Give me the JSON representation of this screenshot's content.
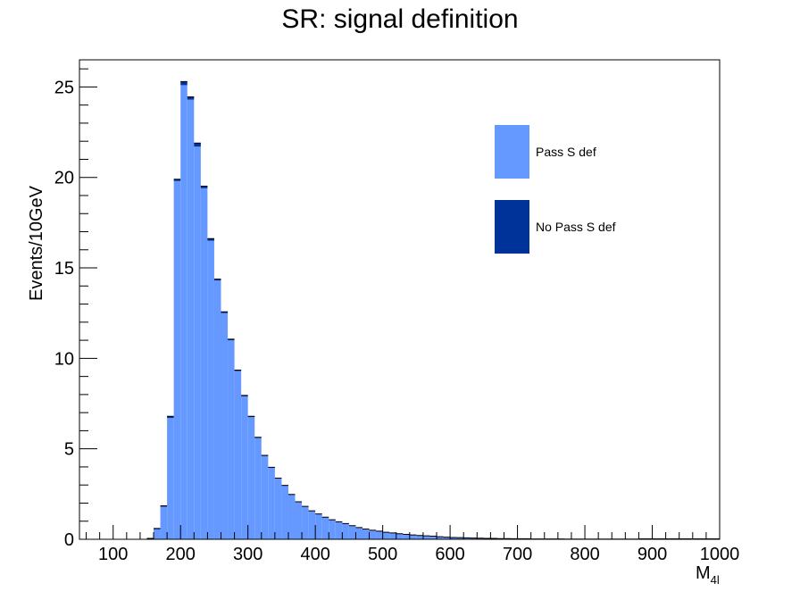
{
  "chart_data": {
    "type": "bar",
    "style": "stacked-histogram",
    "title": "SR: signal definition",
    "ylabel": "Events/10GeV",
    "xlabel_main": "M",
    "xlabel_sub": "4l",
    "xlim": [
      50,
      1000
    ],
    "ylim": [
      0,
      26.5
    ],
    "bin_width": 10,
    "x_ticks": [
      100,
      200,
      300,
      400,
      500,
      600,
      700,
      800,
      900,
      1000
    ],
    "y_ticks": [
      0,
      5,
      10,
      15,
      20,
      25
    ],
    "bin_edges_low": [
      150,
      160,
      170,
      180,
      190,
      200,
      210,
      220,
      230,
      240,
      250,
      260,
      270,
      280,
      290,
      300,
      310,
      320,
      330,
      340,
      350,
      360,
      370,
      380,
      390,
      400,
      410,
      420,
      430,
      440,
      450,
      460,
      470,
      480,
      490,
      500,
      510,
      520,
      530,
      540,
      550,
      560,
      570,
      580,
      590,
      600,
      610,
      620,
      630,
      640,
      650,
      660,
      670,
      680,
      690,
      700,
      710,
      720,
      730,
      740,
      750,
      760,
      770,
      780,
      790,
      800,
      810,
      820,
      830,
      840,
      850,
      860,
      870,
      880,
      890,
      900,
      910,
      920,
      930,
      940,
      950,
      960,
      970,
      980,
      990
    ],
    "series": [
      {
        "name": "Pass S def",
        "color": "#6699ff",
        "values": [
          0.05,
          0.55,
          1.8,
          6.7,
          19.8,
          25.1,
          24.3,
          21.7,
          19.4,
          16.5,
          14.3,
          12.5,
          11.0,
          9.3,
          7.9,
          6.75,
          5.6,
          4.6,
          3.95,
          3.35,
          2.95,
          2.45,
          2.05,
          1.8,
          1.55,
          1.38,
          1.2,
          1.06,
          0.95,
          0.86,
          0.74,
          0.64,
          0.56,
          0.49,
          0.44,
          0.38,
          0.34,
          0.3,
          0.26,
          0.23,
          0.2,
          0.18,
          0.16,
          0.14,
          0.12,
          0.1,
          0.09,
          0.08,
          0.07,
          0.06,
          0.05,
          0.05,
          0.04,
          0.04,
          0.03,
          0.03,
          0.03,
          0.02,
          0.02,
          0.02,
          0.02,
          0.02,
          0.01,
          0.01,
          0.01,
          0.01,
          0.01,
          0.01,
          0.01,
          0.01,
          0.01,
          0.01,
          0.01,
          0.0,
          0.0,
          0.0,
          0.0,
          0.0,
          0.0,
          0.0,
          0.0,
          0.0,
          0.0,
          0.0,
          0.0
        ]
      },
      {
        "name": "No Pass S def",
        "color": "#003399",
        "values": [
          0.0,
          0.05,
          0.05,
          0.1,
          0.1,
          0.2,
          0.15,
          0.2,
          0.12,
          0.12,
          0.08,
          0.07,
          0.06,
          0.05,
          0.05,
          0.05,
          0.04,
          0.04,
          0.03,
          0.03,
          0.03,
          0.03,
          0.02,
          0.02,
          0.02,
          0.02,
          0.02,
          0.02,
          0.02,
          0.01,
          0.01,
          0.01,
          0.01,
          0.01,
          0.01,
          0.01,
          0.01,
          0.01,
          0.01,
          0.01,
          0.01,
          0.01,
          0.01,
          0.0,
          0.0,
          0.0,
          0.0,
          0.0,
          0.0,
          0.0,
          0.0,
          0.0,
          0.0,
          0.0,
          0.0,
          0.0,
          0.0,
          0.0,
          0.0,
          0.0,
          0.0,
          0.0,
          0.0,
          0.0,
          0.0,
          0.0,
          0.0,
          0.0,
          0.0,
          0.0,
          0.0,
          0.0,
          0.0,
          0.0,
          0.0,
          0.0,
          0.0,
          0.0,
          0.0,
          0.0,
          0.0,
          0.0,
          0.0,
          0.0,
          0.0
        ]
      }
    ],
    "legend": {
      "position": "top-right",
      "entries": [
        {
          "label": "Pass S def",
          "color": "#6699ff"
        },
        {
          "label": "No Pass S def",
          "color": "#003399"
        }
      ]
    },
    "grid": false
  }
}
